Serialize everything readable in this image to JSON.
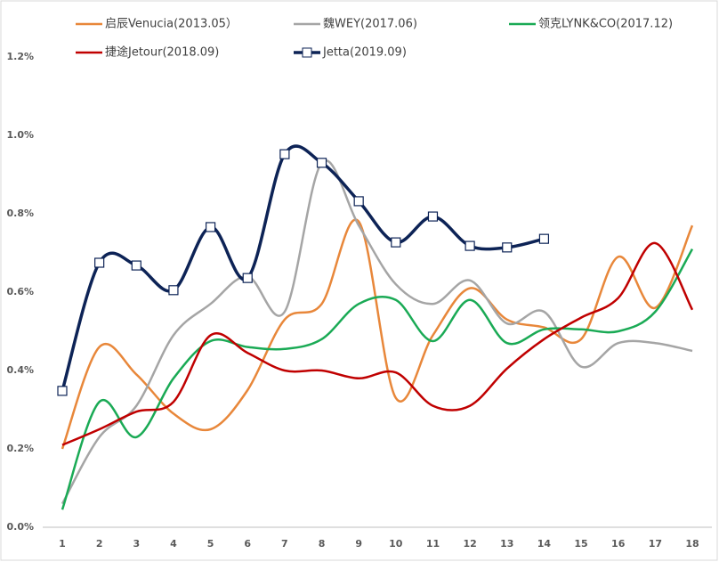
{
  "chart_data": {
    "type": "line",
    "categories": [
      "1",
      "2",
      "3",
      "4",
      "5",
      "6",
      "7",
      "8",
      "9",
      "10",
      "11",
      "12",
      "13",
      "14",
      "15",
      "16",
      "17",
      "18"
    ],
    "series": [
      {
        "name": "启辰Venucia(2013.05）",
        "color": "#e8873a",
        "values": [
          0.2,
          0.46,
          0.39,
          0.29,
          0.25,
          0.35,
          0.53,
          0.57,
          0.78,
          0.33,
          0.49,
          0.61,
          0.53,
          0.51,
          0.48,
          0.69,
          0.56,
          0.77
        ]
      },
      {
        "name": "魏WEY(2017.06)",
        "color": "#a5a5a5",
        "values": [
          0.06,
          0.23,
          0.31,
          0.49,
          0.57,
          0.64,
          0.55,
          0.93,
          0.77,
          0.62,
          0.57,
          0.63,
          0.52,
          0.55,
          0.41,
          0.47,
          0.47,
          0.45
        ]
      },
      {
        "name": "领克LYNK&CO(2017.12)",
        "color": "#1aaa55",
        "values": [
          0.045,
          0.32,
          0.23,
          0.38,
          0.475,
          0.46,
          0.455,
          0.48,
          0.57,
          0.58,
          0.475,
          0.58,
          0.47,
          0.505,
          0.505,
          0.5,
          0.55,
          0.71
        ]
      },
      {
        "name": "捷途Jetour(2018.09)",
        "color": "#c00000",
        "values": [
          0.21,
          0.25,
          0.295,
          0.32,
          0.49,
          0.445,
          0.4,
          0.4,
          0.38,
          0.395,
          0.31,
          0.31,
          0.405,
          0.48,
          0.535,
          0.585,
          0.725,
          0.555
        ]
      },
      {
        "name": "Jetta(2019.09)",
        "color": "#0d2356",
        "marker": "square",
        "values": [
          0.348,
          0.675,
          0.668,
          0.605,
          0.766,
          0.636,
          0.952,
          0.93,
          0.832,
          0.727,
          0.793,
          0.718,
          0.714,
          0.736,
          null,
          null,
          null,
          null
        ]
      }
    ],
    "ylim": [
      0,
      1.2
    ],
    "yticks": [
      {
        "value": 0,
        "label": "0.0%"
      },
      {
        "value": 0.2,
        "label": "0.2%"
      },
      {
        "value": 0.4,
        "label": "0.4%"
      },
      {
        "value": 0.6,
        "label": "0.6%"
      },
      {
        "value": 0.8,
        "label": "0.8%"
      },
      {
        "value": 1.0,
        "label": "1.0%"
      },
      {
        "value": 1.2,
        "label": "1.2%"
      }
    ],
    "smooth": true,
    "grid": false,
    "legend": "top"
  }
}
